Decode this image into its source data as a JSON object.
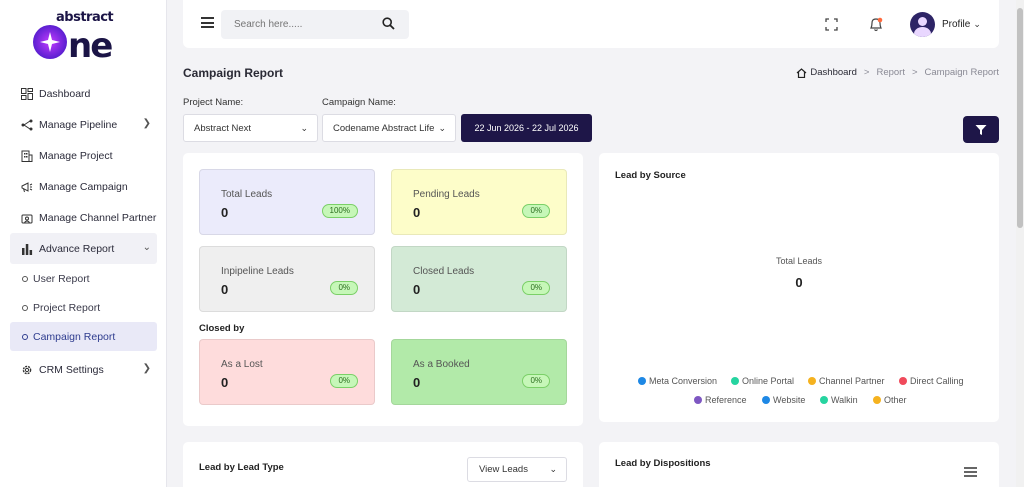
{
  "brand": {
    "small": "abstract",
    "big": "one"
  },
  "sidebar": {
    "items": [
      {
        "label": "Dashboard"
      },
      {
        "label": "Manage Pipeline"
      },
      {
        "label": "Manage Project"
      },
      {
        "label": "Manage Campaign"
      },
      {
        "label": "Manage Channel Partner"
      },
      {
        "label": "Advance Report"
      },
      {
        "label": "CRM Settings"
      }
    ],
    "sub_items": [
      {
        "label": "User Report"
      },
      {
        "label": "Project Report"
      },
      {
        "label": "Campaign Report"
      }
    ]
  },
  "header": {
    "search_placeholder": "Search here.....",
    "profile_label": "Profile"
  },
  "page": {
    "title": "Campaign Report",
    "breadcrumb": [
      "Dashboard",
      "Report",
      "Campaign Report"
    ]
  },
  "filters": {
    "project_label": "Project Name:",
    "project_value": "Abstract Next",
    "campaign_label": "Campaign Name:",
    "campaign_value": "Codename Abstract Life",
    "date_range": "22 Jun 2026 - 22 Jul 2026"
  },
  "stats": [
    {
      "label": "Total Leads",
      "value": "0",
      "badge": "100%",
      "color": "#ebebfb"
    },
    {
      "label": "Pending Leads",
      "value": "0",
      "badge": "0%",
      "color": "#fdfdc9"
    },
    {
      "label": "Inpipeline Leads",
      "value": "0",
      "badge": "0%",
      "color": "#efefef"
    },
    {
      "label": "Closed Leads",
      "value": "0",
      "badge": "0%",
      "color": "#d3ead6"
    }
  ],
  "closed_by": {
    "title": "Closed by",
    "items": [
      {
        "label": "As a Lost",
        "value": "0",
        "badge": "0%",
        "color": "#fedcdc"
      },
      {
        "label": "As a Booked",
        "value": "0",
        "badge": "0%",
        "color": "#b2eaa9"
      }
    ]
  },
  "lead_by_source": {
    "title": "Lead by Source",
    "center_label": "Total Leads",
    "center_value": "0",
    "legend": [
      {
        "label": "Meta Conversion",
        "color": "#1e88e5"
      },
      {
        "label": "Online Portal",
        "color": "#26d4a0"
      },
      {
        "label": "Channel Partner",
        "color": "#f5b21f"
      },
      {
        "label": "Direct Calling",
        "color": "#f04a5b"
      },
      {
        "label": "Reference",
        "color": "#7e57c2"
      },
      {
        "label": "Website",
        "color": "#1e88e5"
      },
      {
        "label": "Walkin",
        "color": "#26d4a0"
      },
      {
        "label": "Other",
        "color": "#f5b21f"
      }
    ]
  },
  "lead_by_type": {
    "title": "Lead by Lead Type",
    "view_label": "View Leads"
  },
  "lead_by_dispositions": {
    "title": "Lead by Dispositions"
  },
  "colors": {
    "primary": "#1e1648",
    "badge_bg": "#c6f7b8"
  }
}
